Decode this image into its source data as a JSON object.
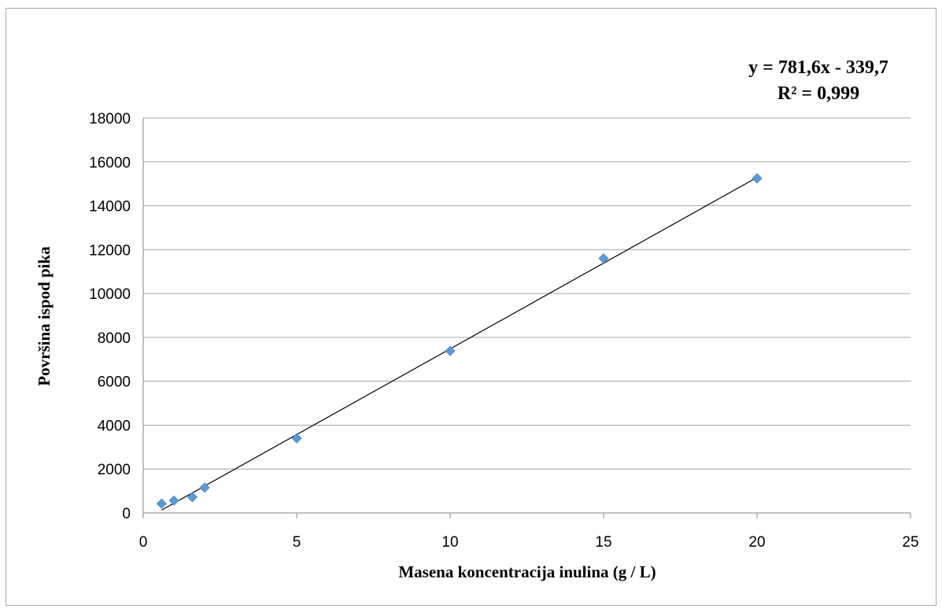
{
  "chart_data": {
    "type": "scatter",
    "title": "",
    "xlabel": "Masena koncentracija inulina (g / L)",
    "ylabel": "Površina ispod pika",
    "xlim": [
      0,
      25
    ],
    "ylim": [
      0,
      18000
    ],
    "x_ticks": [
      "0",
      "5",
      "10",
      "15",
      "20",
      "25"
    ],
    "y_ticks": [
      "0",
      "2000",
      "4000",
      "6000",
      "8000",
      "10000",
      "12000",
      "14000",
      "16000",
      "18000"
    ],
    "grid": "horizontal",
    "legend": "none",
    "marker_color": "#5b9bd5",
    "trendline_color": "#000000",
    "series": [
      {
        "x": [
          0.6,
          1.0,
          1.6,
          2.0,
          5.0,
          10.0,
          15.0,
          20.0
        ],
        "y": [
          420,
          560,
          720,
          1150,
          3400,
          7380,
          11600,
          15250
        ]
      }
    ],
    "trendline": {
      "slope": 781.6,
      "intercept": -339.7,
      "x_range": [
        0.6,
        20.0
      ],
      "equation": "y = 781,6x - 339,7",
      "r_squared": "R² = 0,999"
    }
  }
}
